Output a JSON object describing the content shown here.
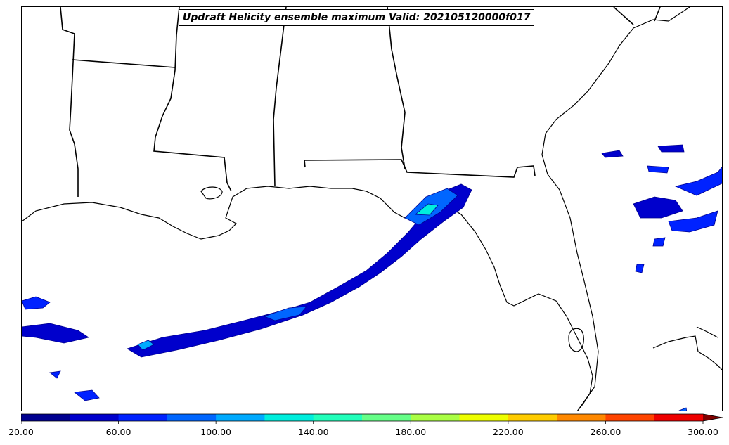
{
  "title": "Updraft Helicity ensemble maximum Valid: 202105120000f017",
  "map_layers": [
    "coastlines",
    "state-borders",
    "updraft-helicity-contours"
  ],
  "colorbar": {
    "min": 20,
    "max": 300,
    "interval": 20,
    "extend": "max",
    "tick_labels": [
      "20.00",
      "60.00",
      "100.00",
      "140.00",
      "180.00",
      "220.00",
      "260.00",
      "300.00"
    ],
    "colors": [
      "#00008f",
      "#0000cc",
      "#0022ff",
      "#0066ff",
      "#00aaff",
      "#00eedd",
      "#22ffbb",
      "#66ff88",
      "#aaff44",
      "#eeff00",
      "#ffcc00",
      "#ff8800",
      "#ff4400",
      "#ee0000",
      "#aa0000",
      "#800000"
    ]
  }
}
